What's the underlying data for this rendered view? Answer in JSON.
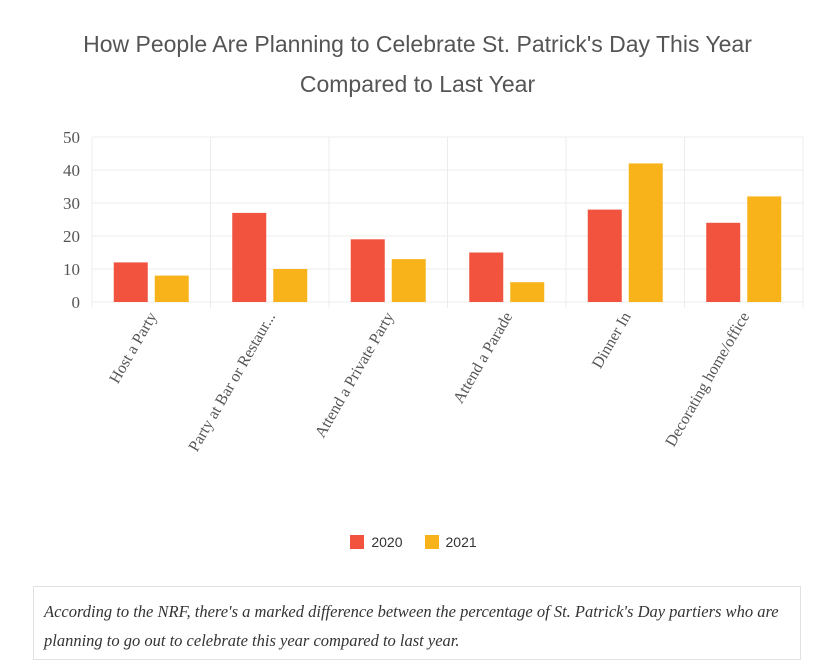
{
  "title_lines": [
    "How People Are Planning to Celebrate St. Patrick's Day This Year",
    "Compared to Last Year"
  ],
  "caption": "According to the NRF, there's a marked difference between the percentage of St. Patrick's Day partiers who are planning to go out to celebrate this year compared to last year.",
  "chart_data": {
    "type": "bar",
    "title": "How People Are Planning to Celebrate St. Patrick's Day This Year Compared to Last Year",
    "categories": [
      "Host a Party",
      "Party at Bar or Restaur...",
      "Attend a Private Party",
      "Attend a Parade",
      "Dinner In",
      "Decorating home/office"
    ],
    "series": [
      {
        "name": "2020",
        "color": "#f1533e",
        "values": [
          12,
          27,
          19,
          15,
          28,
          24
        ]
      },
      {
        "name": "2021",
        "color": "#f8b31b",
        "values": [
          8,
          10,
          13,
          6,
          42,
          32
        ]
      }
    ],
    "ylim": [
      0,
      50
    ],
    "yticks": [
      0,
      10,
      20,
      30,
      40,
      50
    ],
    "grid": true,
    "legend": "bottom-center",
    "xlabel": "",
    "ylabel": ""
  }
}
